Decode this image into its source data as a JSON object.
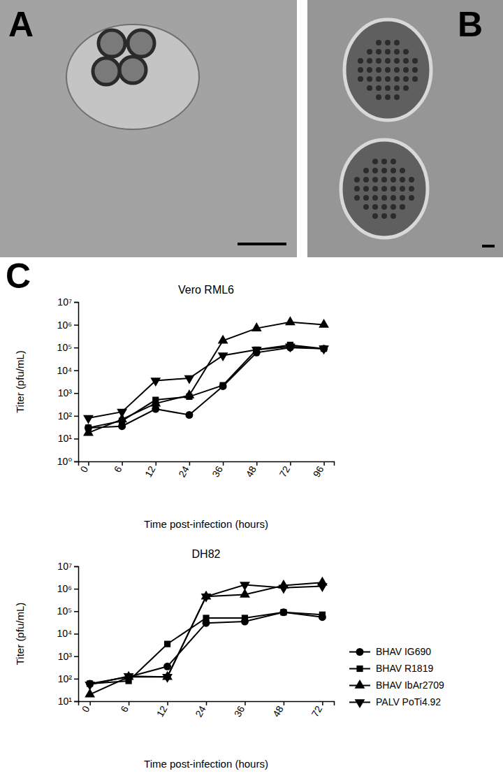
{
  "panels": [
    "A",
    "B",
    "C"
  ],
  "chart_data": [
    {
      "type": "line",
      "title": "Vero RML6",
      "x_label": "Time post-infection (hours)",
      "y_label": "Titer (pfu/mL)",
      "categories": [
        "0",
        "6",
        "12",
        "24",
        "36",
        "48",
        "72",
        "96"
      ],
      "log": "y",
      "ylim": [
        1,
        10000000
      ],
      "yticks": [
        {
          "value": 1,
          "label": "10⁰"
        },
        {
          "value": 10,
          "label": "10¹"
        },
        {
          "value": 100,
          "label": "10²"
        },
        {
          "value": 1000,
          "label": "10³"
        },
        {
          "value": 10000,
          "label": "10⁴"
        },
        {
          "value": 100000,
          "label": "10⁵"
        },
        {
          "value": 1000000,
          "label": "10⁶"
        },
        {
          "value": 10000000,
          "label": "10⁷"
        }
      ],
      "series": [
        {
          "color": "#000000",
          "marker": "circle",
          "values": [
            30,
            35,
            200,
            110,
            2000,
            60000,
            100000,
            90000
          ]
        },
        {
          "color": "#000000",
          "marker": "square",
          "values": [
            30,
            60,
            500,
            700,
            2200,
            80000,
            130000,
            90000
          ]
        },
        {
          "color": "#000000",
          "marker": "triangle",
          "values": [
            18,
            70,
            350,
            800,
            200000,
            700000,
            1300000,
            1000000
          ]
        },
        {
          "color": "#000000",
          "marker": "triangle-down",
          "values": [
            80,
            150,
            3500,
            4500,
            45000,
            80000,
            110000,
            90000
          ]
        }
      ]
    },
    {
      "type": "line",
      "title": "DH82",
      "x_label": "Time post-infection (hours)",
      "y_label": "Titer (pfu/mL)",
      "categories": [
        "0",
        "6",
        "12",
        "24",
        "36",
        "48",
        "72"
      ],
      "log": "y",
      "ylim": [
        10,
        10000000
      ],
      "yticks": [
        {
          "value": 10,
          "label": "10¹"
        },
        {
          "value": 100,
          "label": "10²"
        },
        {
          "value": 1000,
          "label": "10³"
        },
        {
          "value": 10000,
          "label": "10⁴"
        },
        {
          "value": 100000,
          "label": "10⁵"
        },
        {
          "value": 1000000,
          "label": "10⁶"
        },
        {
          "value": 10000000,
          "label": "10⁷"
        }
      ],
      "legend": "right",
      "series": [
        {
          "name": "BHAV IG690",
          "color": "#000000",
          "marker": "circle",
          "values": [
            60,
            120,
            350,
            30000,
            35000,
            90000,
            55000
          ]
        },
        {
          "name": "BHAV R1819",
          "color": "#000000",
          "marker": "square",
          "values": [
            60,
            80,
            3500,
            50000,
            50000,
            90000,
            70000
          ]
        },
        {
          "name": "BHAV IbAr2709",
          "color": "#000000",
          "marker": "triangle",
          "values": [
            20,
            120,
            120,
            450000,
            550000,
            1400000,
            1900000
          ]
        },
        {
          "name": "PALV PoTi4.92",
          "color": "#000000",
          "marker": "triangle-down",
          "values": [
            55,
            130,
            120,
            450000,
            1500000,
            1100000,
            1300000
          ]
        }
      ]
    }
  ]
}
